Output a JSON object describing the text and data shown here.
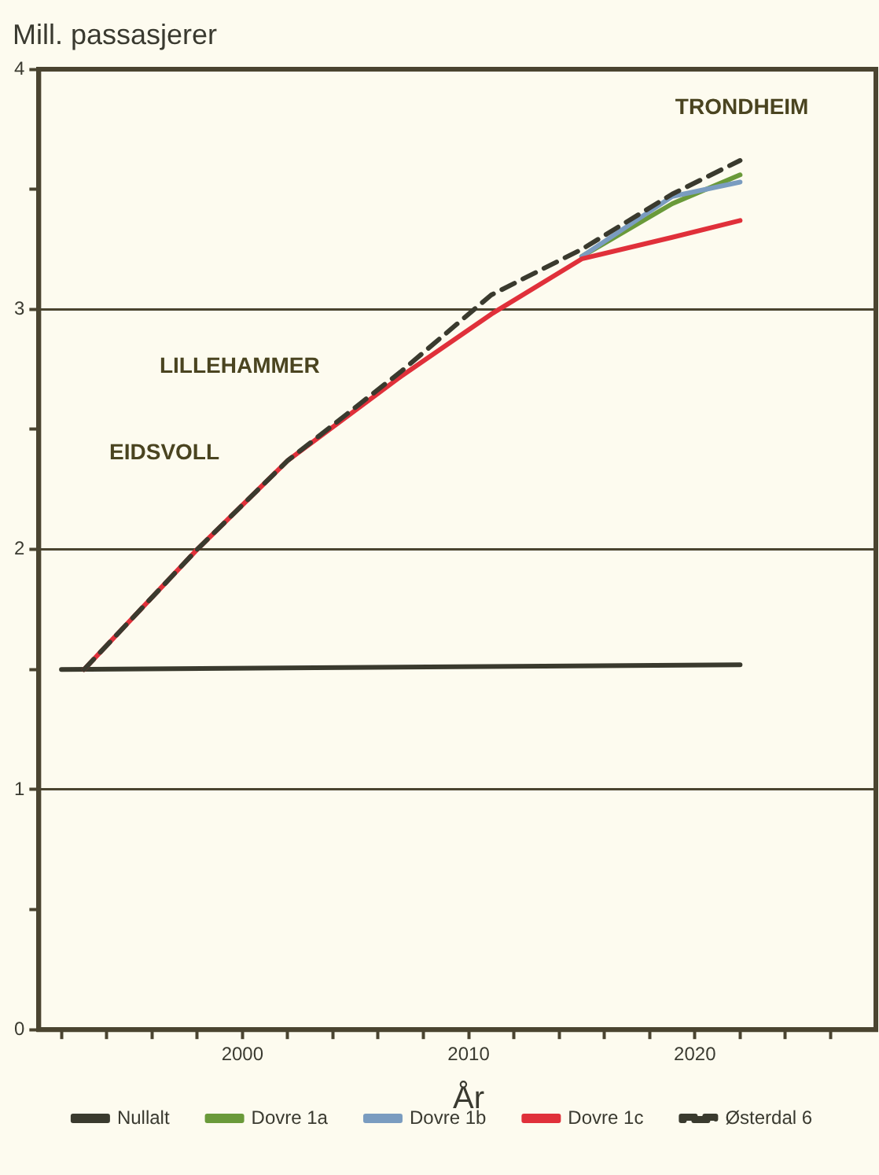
{
  "chart_data": {
    "type": "line",
    "ylabel": "Mill. passasjerer",
    "xlabel": "År",
    "xlim": [
      1991,
      2028
    ],
    "xticks": [
      {
        "value": 1992,
        "label": null
      },
      {
        "value": 1994,
        "label": null
      },
      {
        "value": 1996,
        "label": null
      },
      {
        "value": 1998,
        "label": null
      },
      2000,
      {
        "value": 2002,
        "label": null
      },
      {
        "value": 2004,
        "label": null
      },
      {
        "value": 2006,
        "label": null
      },
      {
        "value": 2008,
        "label": null
      },
      2010,
      {
        "value": 2012,
        "label": null
      },
      {
        "value": 2014,
        "label": null
      },
      {
        "value": 2016,
        "label": null
      },
      {
        "value": 2018,
        "label": null
      },
      2020,
      {
        "value": 2022,
        "label": null
      },
      {
        "value": 2024,
        "label": null
      },
      {
        "value": 2026,
        "label": null
      }
    ],
    "ylim": [
      0,
      4
    ],
    "yticks": [
      0,
      {
        "value": 0.5,
        "label": null
      },
      1,
      {
        "value": 1.5,
        "label": null
      },
      2,
      {
        "value": 2.5,
        "label": null
      },
      3,
      {
        "value": 3.5,
        "label": null
      },
      4
    ],
    "grid": "y",
    "legend": "bottom",
    "marker": "none",
    "series": [
      {
        "name": "Nullalt",
        "color": "#3a3a2e",
        "x": [
          1992,
          2022
        ],
        "values": [
          1.5,
          1.52
        ]
      },
      {
        "name": "Dovre 1a",
        "color": "#6a9a3a",
        "x": [
          2015,
          2019,
          2022
        ],
        "values": [
          3.22,
          3.44,
          3.56
        ]
      },
      {
        "name": "Dovre 1b",
        "color": "#7a9cc0",
        "x": [
          2015,
          2019,
          2022
        ],
        "values": [
          3.22,
          3.47,
          3.53
        ]
      },
      {
        "name": "Dovre 1c",
        "color": "#e0303a",
        "x": [
          1993,
          1998,
          2002,
          2007,
          2011,
          2015,
          2019,
          2022
        ],
        "values": [
          1.5,
          2.0,
          2.37,
          2.72,
          2.98,
          3.21,
          3.3,
          3.37
        ]
      },
      {
        "name": "Østerdal 6",
        "color": "#3a3a2e",
        "line_style": "dashed",
        "x": [
          1993,
          1998,
          2002,
          2007,
          2011,
          2015,
          2019,
          2022
        ],
        "values": [
          1.5,
          2.0,
          2.37,
          2.74,
          3.06,
          3.25,
          3.48,
          3.62
        ]
      }
    ],
    "annotations": [
      "EIDSVOLL",
      "LILLEHAMMER",
      "TRONDHEIM"
    ]
  }
}
